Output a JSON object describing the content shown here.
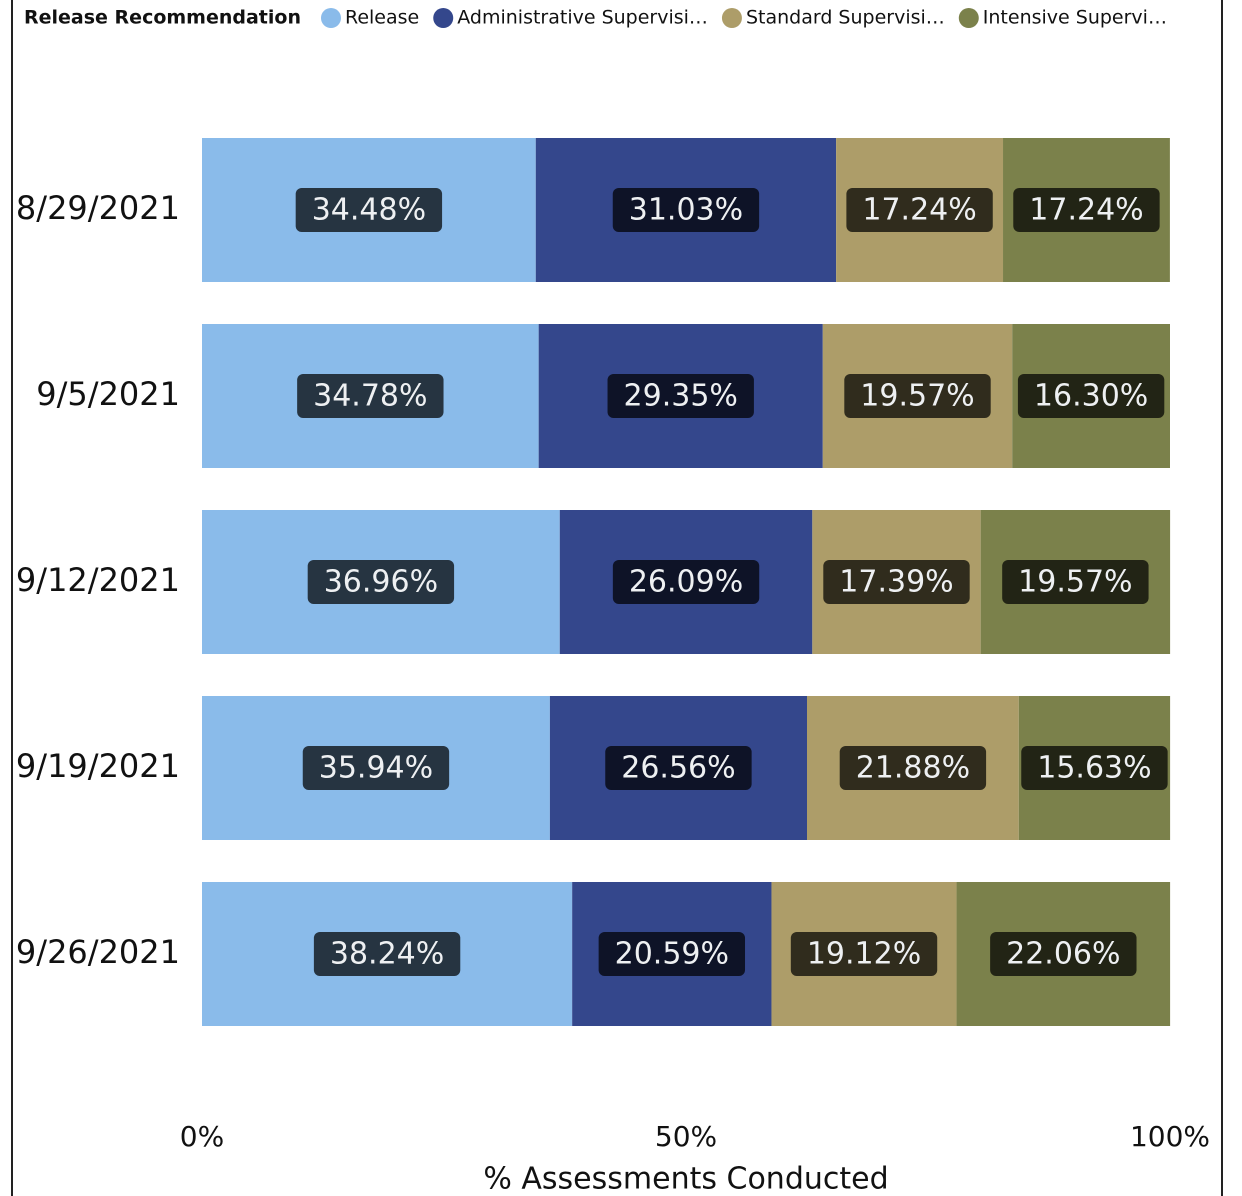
{
  "chart_data": {
    "type": "stacked-bar-horizontal",
    "legend_title": "Release Recommendation",
    "categories": [
      "8/29/2021",
      "9/5/2021",
      "9/12/2021",
      "9/19/2021",
      "9/26/2021"
    ],
    "series": [
      {
        "name": "Release",
        "color": "#8abbea",
        "values": [
          34.48,
          34.78,
          36.96,
          35.94,
          38.24
        ],
        "value_labels": [
          "34.48%",
          "34.78%",
          "36.96%",
          "35.94%",
          "38.24%"
        ]
      },
      {
        "name": "Administrative Supervisi…",
        "color": "#34478c",
        "values": [
          31.03,
          29.35,
          26.09,
          26.56,
          20.59
        ],
        "value_labels": [
          "31.03%",
          "29.35%",
          "26.09%",
          "26.56%",
          "20.59%"
        ]
      },
      {
        "name": "Standard Supervisi…",
        "color": "#ad9d69",
        "values": [
          17.24,
          19.57,
          17.39,
          21.88,
          19.12
        ],
        "value_labels": [
          "17.24%",
          "19.57%",
          "17.39%",
          "21.88%",
          "19.12%"
        ]
      },
      {
        "name": "Intensive Supervi…",
        "color": "#7b814b",
        "values": [
          17.24,
          16.3,
          19.57,
          15.63,
          22.06
        ],
        "value_labels": [
          "17.24%",
          "16.30%",
          "19.57%",
          "15.63%",
          "22.06%"
        ]
      }
    ],
    "xlim": [
      0,
      100
    ],
    "xticks": [
      {
        "value": 0,
        "label": "0%"
      },
      {
        "value": 50,
        "label": "50%"
      },
      {
        "value": 100,
        "label": "100%"
      }
    ],
    "x_label": "% Assessments Conducted"
  }
}
